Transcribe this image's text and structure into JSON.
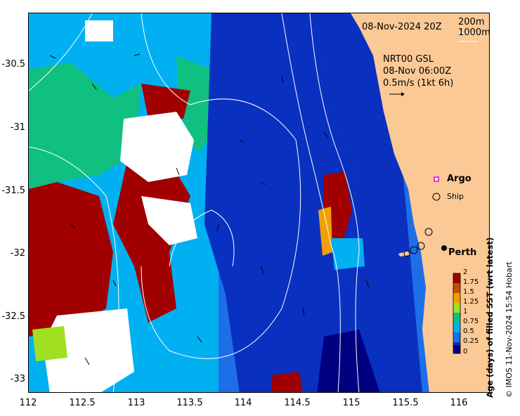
{
  "header": {
    "date_label": "08-Nov-2024 20Z",
    "contour_200": "200m",
    "contour_1000": "1000m"
  },
  "current_info": {
    "model": "NRT00 GSL",
    "time": "08-Nov 06:00Z",
    "scale": "0.5m/s (1kt 6h)"
  },
  "legend": {
    "argo": "Argo",
    "ship": "Ship",
    "city": "Perth"
  },
  "colorbar": {
    "title": "Age (days) of filled SST (wrt latest)",
    "ticks": [
      "2",
      "1.75",
      "1.5",
      "1.25",
      "1",
      "0.75",
      "0.5",
      "0.25",
      "0"
    ]
  },
  "credit": "© IMOS 11-Nov-2024 15:54 Hobart",
  "axes": {
    "y_ticks": [
      "-30.5",
      "-31",
      "-31.5",
      "-32",
      "-32.5",
      "-33"
    ],
    "x_ticks": [
      "112",
      "112.5",
      "113",
      "113.5",
      "114",
      "114.5",
      "115",
      "115.5",
      "116"
    ]
  },
  "colors": {
    "land": "#fbc995",
    "age_0": "#000080",
    "age_0_25": "#0a30c0",
    "age_0_5": "#1e6ee8",
    "age_0_75": "#00b0f0",
    "age_1": "#10c080",
    "age_1_25": "#a0e020",
    "age_1_5": "#f0a000",
    "age_1_75": "#c05000",
    "age_2": "#a00000",
    "missing": "#ffffff"
  }
}
